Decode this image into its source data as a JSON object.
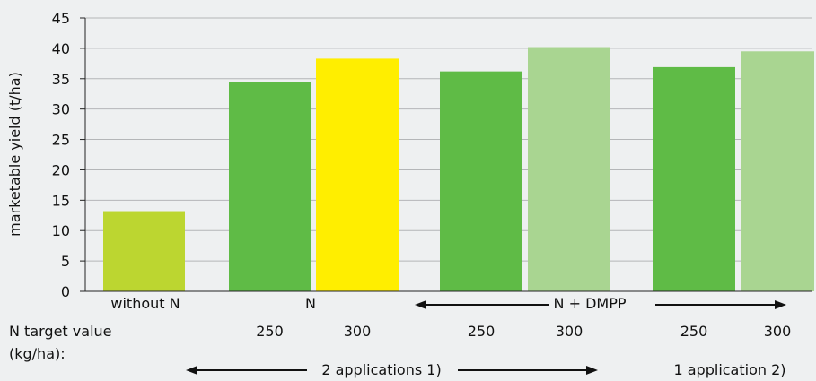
{
  "chart_data": {
    "type": "bar",
    "ylabel": "marketable yield (t/ha)",
    "ylim": [
      0,
      45
    ],
    "yticks": [
      0,
      5,
      10,
      15,
      20,
      25,
      30,
      35,
      40,
      45
    ],
    "grid": true,
    "bars": [
      {
        "value": 13.2,
        "color": "#bcd630",
        "x_label": ""
      },
      {
        "value": 34.5,
        "color": "#5fbb46",
        "x_label": "250"
      },
      {
        "value": 38.3,
        "color": "#ffee00",
        "x_label": "300"
      },
      {
        "value": 36.2,
        "color": "#5fbb46",
        "x_label": "250"
      },
      {
        "value": 40.2,
        "color": "#a9d591",
        "x_label": "300"
      },
      {
        "value": 36.9,
        "color": "#5fbb46",
        "x_label": "250"
      },
      {
        "value": 39.5,
        "color": "#a9d591",
        "x_label": "300"
      }
    ],
    "groups": [
      "without N",
      "N",
      "N + DMPP"
    ],
    "row_label_line1": "N target value",
    "row_label_line2": "(kg/ha):",
    "applications": [
      "2 applications 1)",
      "1 application 2)"
    ]
  }
}
